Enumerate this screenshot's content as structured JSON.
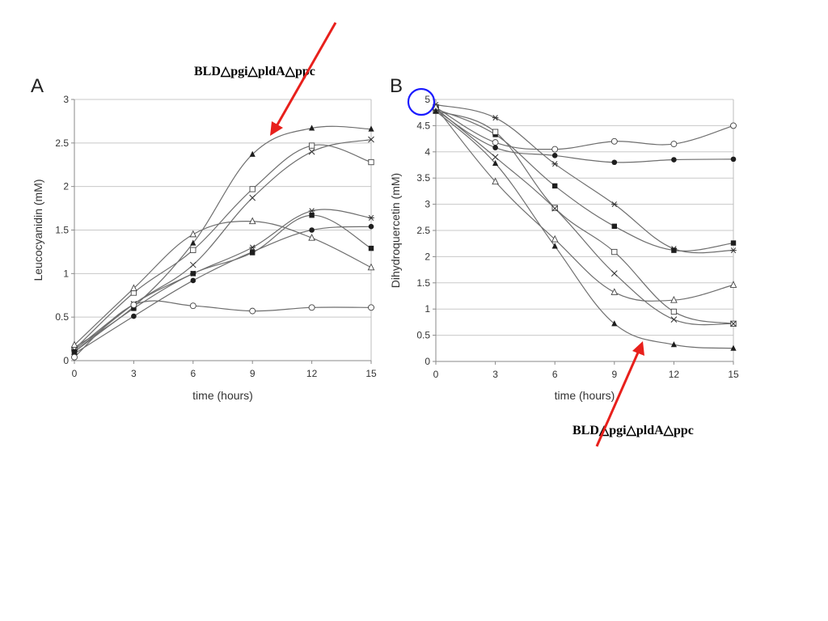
{
  "annotations": {
    "top_label": "BLD△pgi△pldA△ppc",
    "bottom_label": "BLD△pgi△pldA△ppc",
    "arrow_color": "#e8201c",
    "circle_color": "#1a1aff"
  },
  "chart_data": [
    {
      "panel": "A",
      "type": "line",
      "xlabel": "time (hours)",
      "ylabel": "Leucocyanidin (mM)",
      "xlim": [
        0,
        15
      ],
      "ylim": [
        0,
        3
      ],
      "xticks": [
        0,
        3,
        6,
        9,
        12,
        15
      ],
      "yticks": [
        0,
        0.5,
        1,
        1.5,
        2,
        2.5,
        3
      ],
      "ytick_labels": [
        "0",
        "0.5",
        "1",
        "1.5",
        "2",
        "2.5",
        "3"
      ],
      "grid": true,
      "x": [
        0,
        3,
        6,
        9,
        12,
        15
      ],
      "series": [
        {
          "marker": "filled-triangle",
          "values": [
            0.15,
            0.62,
            1.35,
            2.37,
            2.67,
            2.66
          ]
        },
        {
          "marker": "open-square",
          "values": [
            0.13,
            0.78,
            1.27,
            1.97,
            2.47,
            2.28
          ]
        },
        {
          "marker": "x",
          "values": [
            0.1,
            0.65,
            1.1,
            1.87,
            2.4,
            2.54
          ]
        },
        {
          "marker": "open-triangle",
          "values": [
            0.18,
            0.83,
            1.45,
            1.6,
            1.41,
            1.07
          ]
        },
        {
          "marker": "asterisk",
          "values": [
            0.12,
            0.65,
            1.0,
            1.3,
            1.72,
            1.64
          ]
        },
        {
          "marker": "filled-square",
          "values": [
            0.1,
            0.6,
            1.0,
            1.24,
            1.67,
            1.29
          ]
        },
        {
          "marker": "filled-circle",
          "values": [
            0.08,
            0.51,
            0.92,
            1.25,
            1.5,
            1.54
          ]
        },
        {
          "marker": "open-circle",
          "values": [
            0.04,
            0.64,
            0.63,
            0.57,
            0.61,
            0.61
          ]
        }
      ]
    },
    {
      "panel": "B",
      "type": "line",
      "xlabel": "time (hours)",
      "ylabel": "Dihydroquercetin (mM)",
      "xlim": [
        0,
        15
      ],
      "ylim": [
        0,
        5
      ],
      "xticks": [
        0,
        3,
        6,
        9,
        12,
        15
      ],
      "yticks": [
        0,
        0.5,
        1,
        1.5,
        2,
        2.5,
        3,
        3.5,
        4,
        4.5,
        5
      ],
      "ytick_labels": [
        "0",
        "0.5",
        "1",
        "1.5",
        "2",
        "2.5",
        "3",
        "3.5",
        "4",
        "4.5",
        "5"
      ],
      "grid": true,
      "x": [
        0,
        3,
        6,
        9,
        12,
        15
      ],
      "series": [
        {
          "marker": "open-circle",
          "values": [
            4.85,
            4.18,
            4.05,
            4.2,
            4.15,
            4.5
          ]
        },
        {
          "marker": "filled-circle",
          "values": [
            4.8,
            4.08,
            3.93,
            3.8,
            3.85,
            3.86
          ]
        },
        {
          "marker": "asterisk",
          "values": [
            4.9,
            4.65,
            3.77,
            3.0,
            2.15,
            2.12
          ]
        },
        {
          "marker": "filled-square",
          "values": [
            4.82,
            4.33,
            3.35,
            2.58,
            2.12,
            2.26
          ]
        },
        {
          "marker": "open-square",
          "values": [
            4.78,
            4.38,
            2.93,
            2.09,
            0.95,
            0.72
          ]
        },
        {
          "marker": "x",
          "values": [
            4.83,
            3.9,
            2.92,
            1.68,
            0.8,
            0.72
          ]
        },
        {
          "marker": "open-triangle",
          "values": [
            4.85,
            3.43,
            2.33,
            1.32,
            1.17,
            1.46
          ]
        },
        {
          "marker": "filled-triangle",
          "values": [
            4.78,
            3.78,
            2.2,
            0.72,
            0.32,
            0.25
          ]
        }
      ]
    }
  ]
}
